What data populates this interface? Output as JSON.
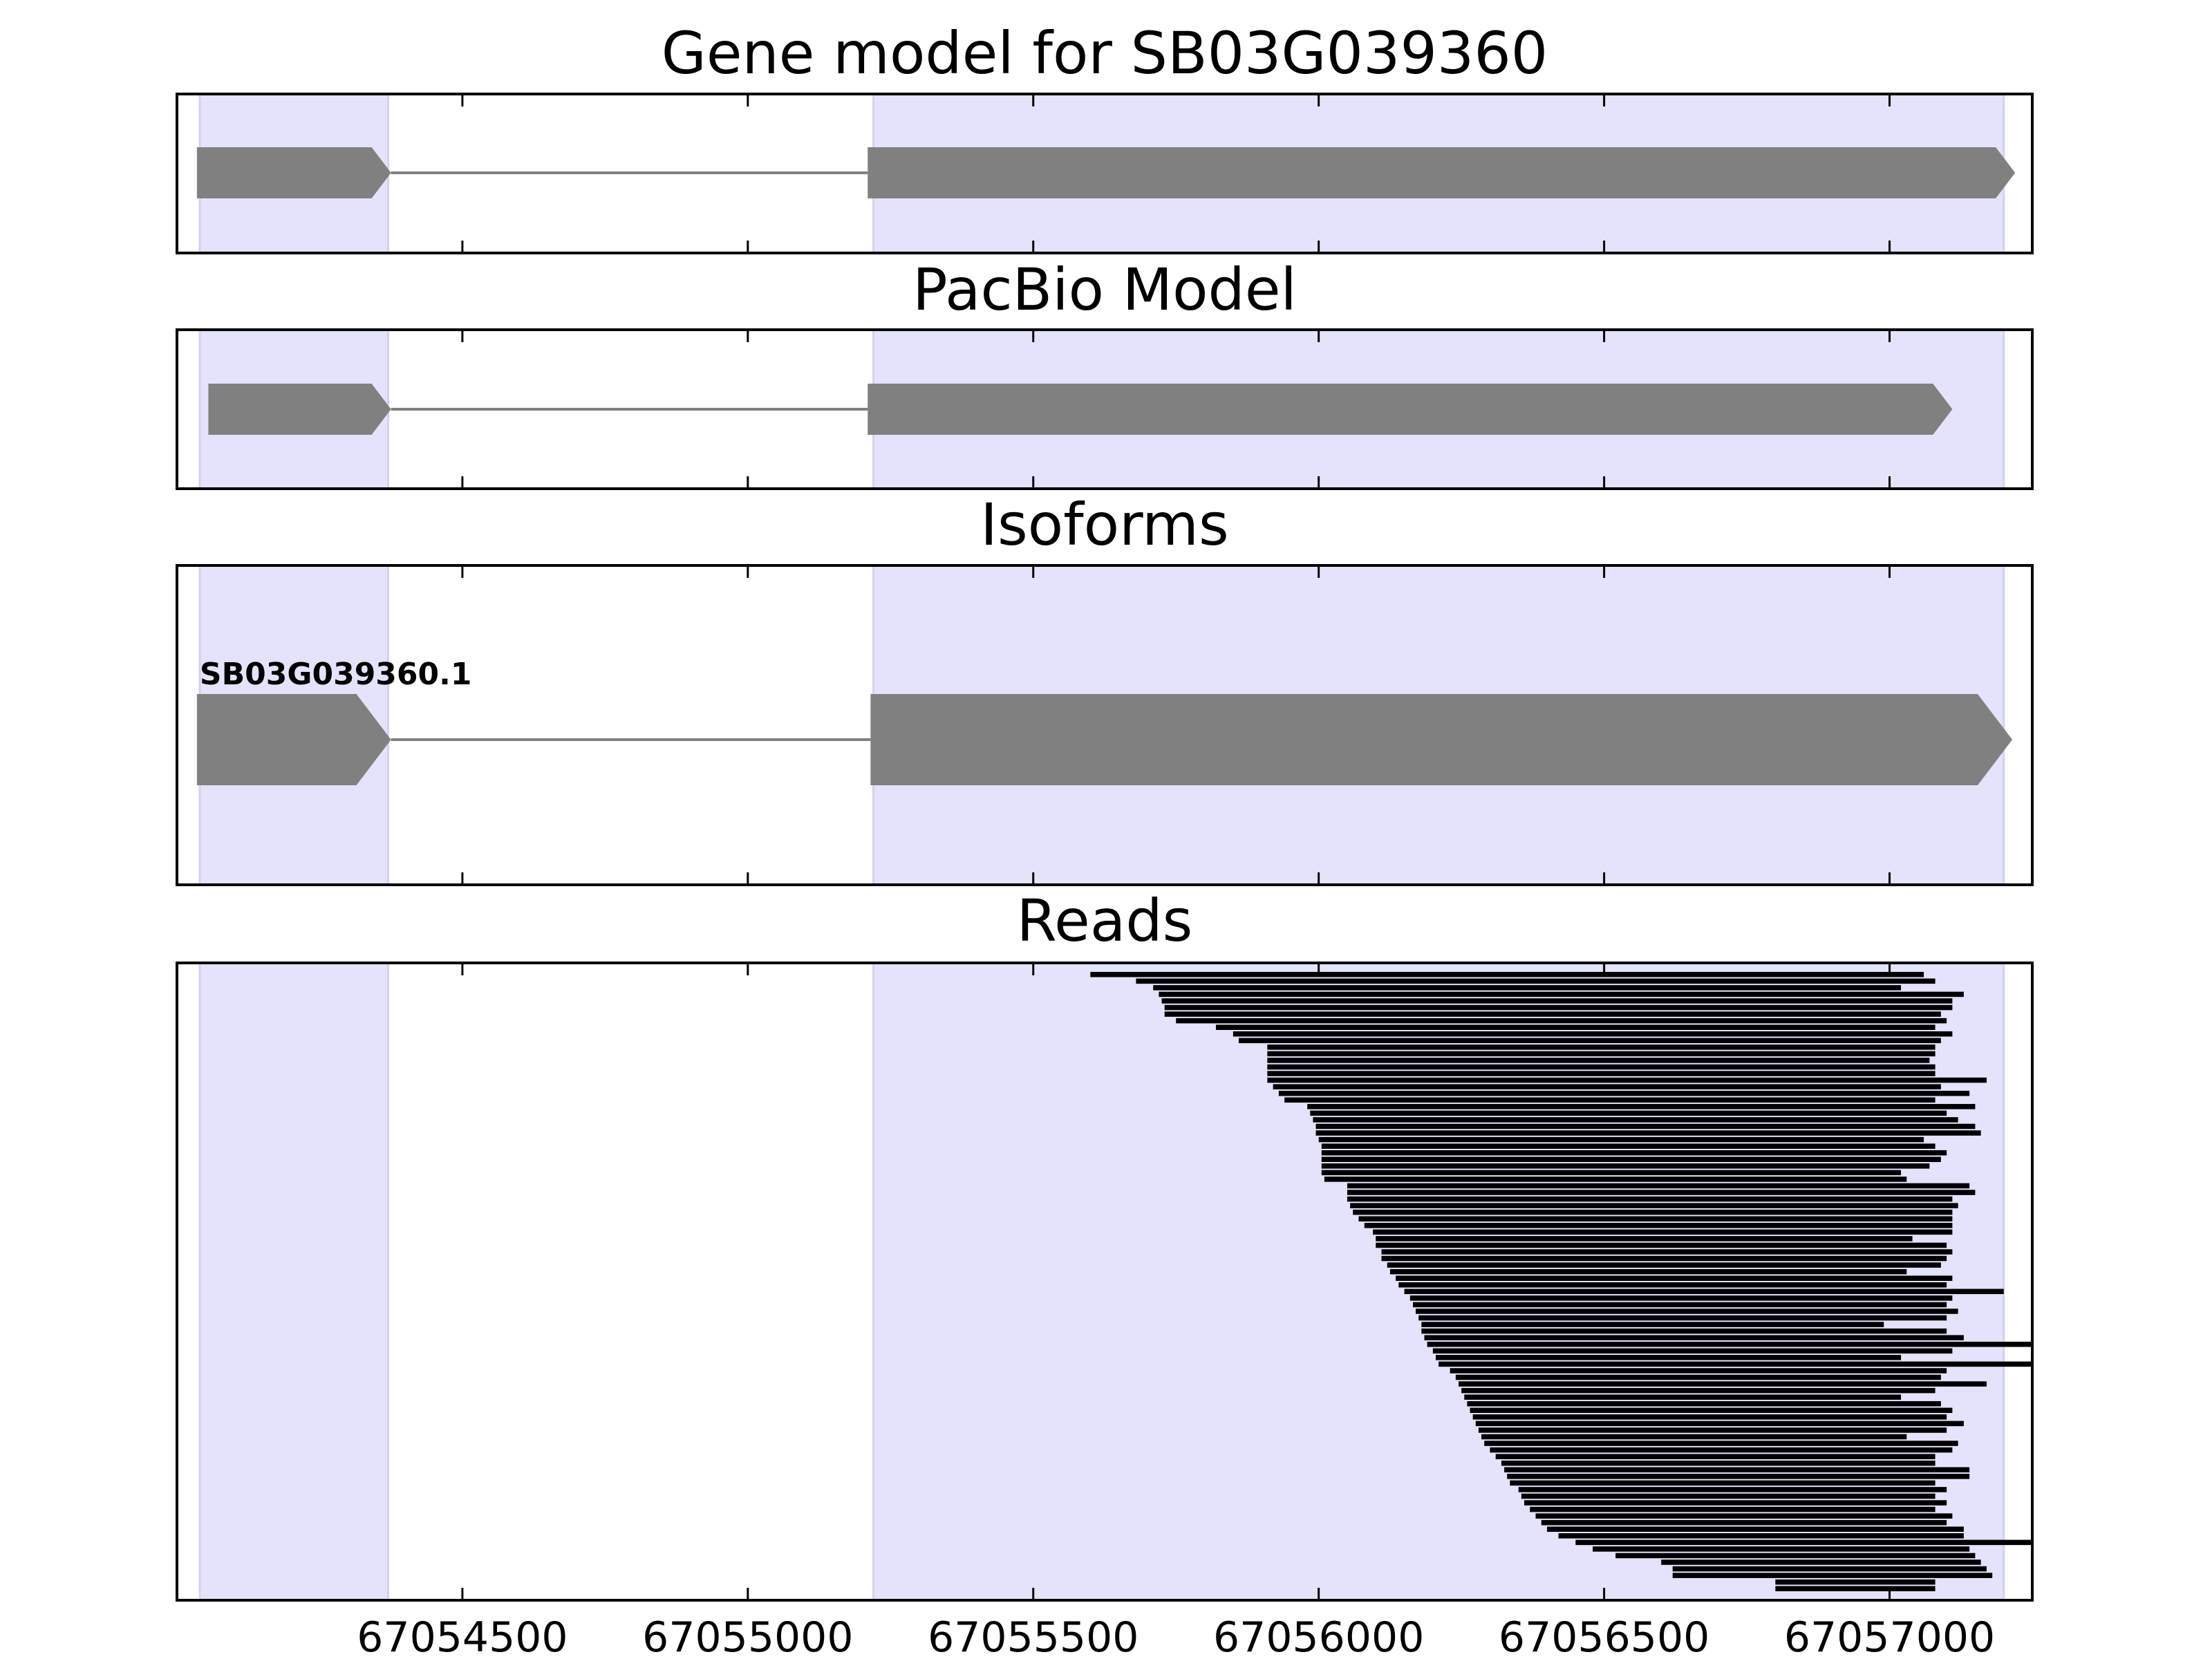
{
  "chart_data": {
    "type": "gene-track",
    "xlim": [
      67054000,
      67057250
    ],
    "x_ticks": [
      67054500,
      67055000,
      67055500,
      67056000,
      67056500,
      67057000
    ],
    "x_tick_labels": [
      "67054500",
      "67055000",
      "67055500",
      "67056000",
      "67056500",
      "67057000"
    ],
    "exon_regions": [
      [
        67054040,
        67054370
      ],
      [
        67055220,
        67057200
      ]
    ],
    "colors": {
      "exon_shade": "#e3e3fc",
      "feature": "#808080",
      "intron": "#808080",
      "read": "#000000",
      "axes": "#000000"
    },
    "panels": [
      {
        "key": "gene_model",
        "title": "Gene model for SB03G039360",
        "features": [
          {
            "exons": [
              [
                67054035,
                67054375
              ],
              [
                67055210,
                67057220
              ]
            ]
          }
        ]
      },
      {
        "key": "pacbio_model",
        "title": "PacBio Model",
        "features": [
          {
            "exons": [
              [
                67054055,
                67054375
              ],
              [
                67055210,
                67057110
              ]
            ]
          }
        ]
      },
      {
        "key": "isoforms",
        "title": "Isoforms",
        "features": [
          {
            "label": "SB03G039360.1",
            "exons": [
              [
                67054035,
                67054375
              ],
              [
                67055215,
                67057215
              ]
            ]
          }
        ]
      },
      {
        "key": "reads",
        "title": "Reads"
      }
    ],
    "reads": [
      [
        67055600,
        67057060
      ],
      [
        67055680,
        67057080
      ],
      [
        67055710,
        67057020
      ],
      [
        67055720,
        67057130
      ],
      [
        67055725,
        67057110
      ],
      [
        67055730,
        67057110
      ],
      [
        67055730,
        67057090
      ],
      [
        67055750,
        67057100
      ],
      [
        67055820,
        67057080
      ],
      [
        67055850,
        67057110
      ],
      [
        67055860,
        67057090
      ],
      [
        67055910,
        67057080
      ],
      [
        67055910,
        67057080
      ],
      [
        67055910,
        67057070
      ],
      [
        67055910,
        67057080
      ],
      [
        67055910,
        67057080
      ],
      [
        67055910,
        67057170
      ],
      [
        67055920,
        67057090
      ],
      [
        67055930,
        67057140
      ],
      [
        67055940,
        67057080
      ],
      [
        67055980,
        67057150
      ],
      [
        67055985,
        67057100
      ],
      [
        67055990,
        67057120
      ],
      [
        67055995,
        67057150
      ],
      [
        67055995,
        67057160
      ],
      [
        67056000,
        67057060
      ],
      [
        67056005,
        67057080
      ],
      [
        67056005,
        67057100
      ],
      [
        67056005,
        67057090
      ],
      [
        67056005,
        67057070
      ],
      [
        67056005,
        67057020
      ],
      [
        67056010,
        67057030
      ],
      [
        67056050,
        67057140
      ],
      [
        67056050,
        67057150
      ],
      [
        67056050,
        67057110
      ],
      [
        67056055,
        67057120
      ],
      [
        67056060,
        67057110
      ],
      [
        67056070,
        67057110
      ],
      [
        67056080,
        67057110
      ],
      [
        67056095,
        67057110
      ],
      [
        67056100,
        67057040
      ],
      [
        67056100,
        67057100
      ],
      [
        67056110,
        67057110
      ],
      [
        67056110,
        67057100
      ],
      [
        67056120,
        67057090
      ],
      [
        67056125,
        67057030
      ],
      [
        67056135,
        67057110
      ],
      [
        67056140,
        67057100
      ],
      [
        67056150,
        67057200
      ],
      [
        67056160,
        67057110
      ],
      [
        67056165,
        67057100
      ],
      [
        67056170,
        67057120
      ],
      [
        67056175,
        67057100
      ],
      [
        67056180,
        67056990
      ],
      [
        67056180,
        67057100
      ],
      [
        67056185,
        67057130
      ],
      [
        67056190,
        67057250
      ],
      [
        67056200,
        67057110
      ],
      [
        67056205,
        67057020
      ],
      [
        67056210,
        67057250
      ],
      [
        67056230,
        67057100
      ],
      [
        67056240,
        67057090
      ],
      [
        67056245,
        67057170
      ],
      [
        67056250,
        67057080
      ],
      [
        67056255,
        67057020
      ],
      [
        67056260,
        67057090
      ],
      [
        67056265,
        67057110
      ],
      [
        67056270,
        67057100
      ],
      [
        67056275,
        67057130
      ],
      [
        67056280,
        67057100
      ],
      [
        67056285,
        67057030
      ],
      [
        67056290,
        67057120
      ],
      [
        67056300,
        67057110
      ],
      [
        67056310,
        67057080
      ],
      [
        67056320,
        67057080
      ],
      [
        67056325,
        67057140
      ],
      [
        67056330,
        67057140
      ],
      [
        67056335,
        67057080
      ],
      [
        67056350,
        67057100
      ],
      [
        67056355,
        67057080
      ],
      [
        67056360,
        67057100
      ],
      [
        67056370,
        67057080
      ],
      [
        67056380,
        67057110
      ],
      [
        67056390,
        67057100
      ],
      [
        67056400,
        67057130
      ],
      [
        67056420,
        67057130
      ],
      [
        67056450,
        67057250
      ],
      [
        67056480,
        67057140
      ],
      [
        67056520,
        67057150
      ],
      [
        67056600,
        67057160
      ],
      [
        67056620,
        67057170
      ],
      [
        67056620,
        67057180
      ],
      [
        67056800,
        67057080
      ],
      [
        67056800,
        67057080
      ]
    ]
  }
}
